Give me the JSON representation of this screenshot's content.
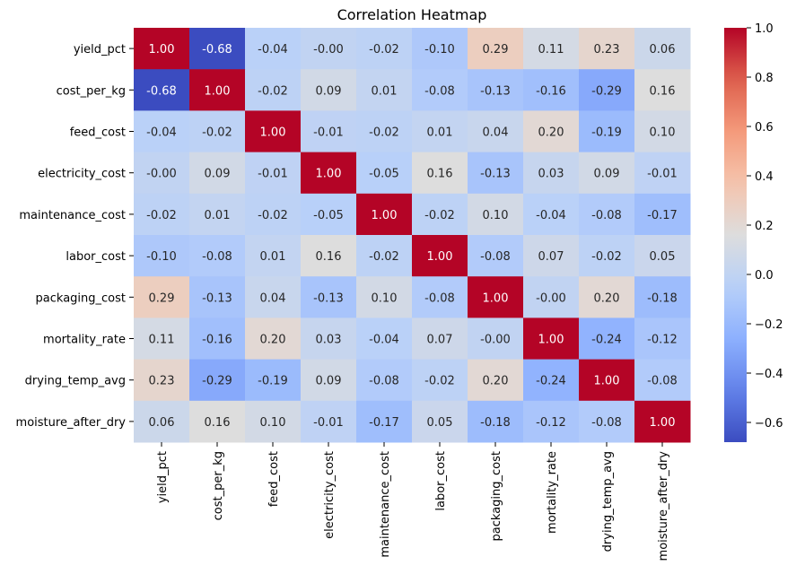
{
  "chart_data": {
    "type": "heatmap",
    "title": "Correlation Heatmap",
    "xlabel": "",
    "ylabel": "",
    "colormap": "coolwarm",
    "vmin": -0.68,
    "vmax": 1.0,
    "labels": [
      "yield_pct",
      "cost_per_kg",
      "feed_cost",
      "electricity_cost",
      "maintenance_cost",
      "labor_cost",
      "packaging_cost",
      "mortality_rate",
      "drying_temp_avg",
      "moisture_after_dry"
    ],
    "matrix": [
      [
        1.0,
        -0.68,
        -0.04,
        -0.0,
        -0.02,
        -0.1,
        0.29,
        0.11,
        0.23,
        0.06
      ],
      [
        -0.68,
        1.0,
        -0.02,
        0.09,
        0.01,
        -0.08,
        -0.13,
        -0.16,
        -0.29,
        0.16
      ],
      [
        -0.04,
        -0.02,
        1.0,
        -0.01,
        -0.02,
        0.01,
        0.04,
        0.2,
        -0.19,
        0.1
      ],
      [
        -0.0,
        0.09,
        -0.01,
        1.0,
        -0.05,
        0.16,
        -0.13,
        0.03,
        0.09,
        -0.01
      ],
      [
        -0.02,
        0.01,
        -0.02,
        -0.05,
        1.0,
        -0.02,
        0.1,
        -0.04,
        -0.08,
        -0.17
      ],
      [
        -0.1,
        -0.08,
        0.01,
        0.16,
        -0.02,
        1.0,
        -0.08,
        0.07,
        -0.02,
        0.05
      ],
      [
        0.29,
        -0.13,
        0.04,
        -0.13,
        0.1,
        -0.08,
        1.0,
        -0.0,
        0.2,
        -0.18
      ],
      [
        0.11,
        -0.16,
        0.2,
        0.03,
        -0.04,
        0.07,
        -0.0,
        1.0,
        -0.24,
        -0.12
      ],
      [
        0.23,
        -0.29,
        -0.19,
        0.09,
        -0.08,
        -0.02,
        0.2,
        -0.24,
        1.0,
        -0.08
      ],
      [
        0.06,
        0.16,
        0.1,
        -0.01,
        -0.17,
        0.05,
        -0.18,
        -0.12,
        -0.08,
        1.0
      ]
    ],
    "cell_labels": [
      [
        "1.00",
        "-0.68",
        "-0.04",
        "-0.00",
        "-0.02",
        "-0.10",
        "0.29",
        "0.11",
        "0.23",
        "0.06"
      ],
      [
        "-0.68",
        "1.00",
        "-0.02",
        "0.09",
        "0.01",
        "-0.08",
        "-0.13",
        "-0.16",
        "-0.29",
        "0.16"
      ],
      [
        "-0.04",
        "-0.02",
        "1.00",
        "-0.01",
        "-0.02",
        "0.01",
        "0.04",
        "0.20",
        "-0.19",
        "0.10"
      ],
      [
        "-0.00",
        "0.09",
        "-0.01",
        "1.00",
        "-0.05",
        "0.16",
        "-0.13",
        "0.03",
        "0.09",
        "-0.01"
      ],
      [
        "-0.02",
        "0.01",
        "-0.02",
        "-0.05",
        "1.00",
        "-0.02",
        "0.10",
        "-0.04",
        "-0.08",
        "-0.17"
      ],
      [
        "-0.10",
        "-0.08",
        "0.01",
        "0.16",
        "-0.02",
        "1.00",
        "-0.08",
        "0.07",
        "-0.02",
        "0.05"
      ],
      [
        "0.29",
        "-0.13",
        "0.04",
        "-0.13",
        "0.10",
        "-0.08",
        "1.00",
        "-0.00",
        "0.20",
        "-0.18"
      ],
      [
        "0.11",
        "-0.16",
        "0.20",
        "0.03",
        "-0.04",
        "0.07",
        "-0.00",
        "1.00",
        "-0.24",
        "-0.12"
      ],
      [
        "0.23",
        "-0.29",
        "-0.19",
        "0.09",
        "-0.08",
        "-0.02",
        "0.20",
        "-0.24",
        "1.00",
        "-0.08"
      ],
      [
        "0.06",
        "0.16",
        "0.10",
        "-0.01",
        "-0.17",
        "0.05",
        "-0.18",
        "-0.12",
        "-0.08",
        "1.00"
      ]
    ],
    "colorbar": {
      "ticks": [
        1.0,
        0.8,
        0.6,
        0.4,
        0.2,
        0.0,
        -0.2,
        -0.4,
        -0.6
      ],
      "tick_labels": [
        "1.0",
        "0.8",
        "0.6",
        "0.4",
        "0.2",
        "0.0",
        "−0.2",
        "−0.4",
        "−0.6"
      ]
    }
  }
}
